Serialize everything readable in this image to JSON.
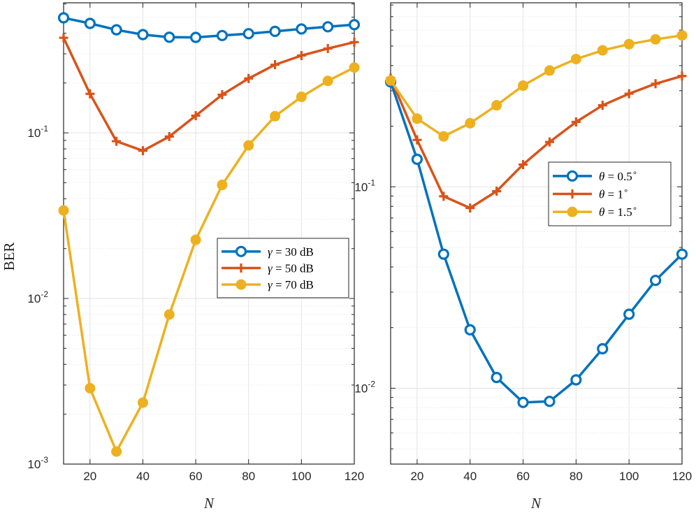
{
  "chart_data": [
    {
      "type": "line",
      "yscale": "log",
      "xlabel": "N",
      "ylabel": "BER",
      "xlim": [
        10,
        120
      ],
      "ylim": [
        0.001,
        0.61
      ],
      "xticks": [
        20,
        40,
        60,
        80,
        100,
        120
      ],
      "ytick_labels": [
        {
          "base": "10",
          "exp": "-1",
          "value": 0.1
        },
        {
          "base": "10",
          "exp": "-2",
          "value": 0.01
        },
        {
          "base": "10",
          "exp": "-3",
          "value": 0.001
        }
      ],
      "grid": true,
      "legend_position": "right-middle",
      "x": [
        10,
        20,
        30,
        40,
        50,
        60,
        70,
        80,
        90,
        100,
        110,
        120
      ],
      "series": [
        {
          "name": "γ = 30 dB",
          "math": "γ",
          "rhs": "= 30 dB",
          "color": "#0072BD",
          "marker": "circle",
          "values": [
            0.495,
            0.458,
            0.419,
            0.392,
            0.378,
            0.377,
            0.387,
            0.397,
            0.41,
            0.424,
            0.437,
            0.45
          ]
        },
        {
          "name": "γ = 50 dB",
          "math": "γ",
          "rhs": "= 50 dB",
          "color": "#D95319",
          "marker": "plus",
          "values": [
            0.375,
            0.172,
            0.089,
            0.078,
            0.095,
            0.127,
            0.17,
            0.213,
            0.258,
            0.293,
            0.323,
            0.353
          ]
        },
        {
          "name": "γ = 70 dB",
          "math": "γ",
          "rhs": "= 70 dB",
          "color": "#EDB120",
          "marker": "dot",
          "values": [
            0.034,
            0.00287,
            0.00119,
            0.00235,
            0.008,
            0.0226,
            0.0485,
            0.084,
            0.126,
            0.165,
            0.206,
            0.248
          ]
        }
      ]
    },
    {
      "type": "line",
      "yscale": "log",
      "xlabel": "N",
      "ylabel": "",
      "xlim": [
        10,
        120
      ],
      "ylim": [
        0.0042,
        0.82
      ],
      "xticks": [
        20,
        40,
        60,
        80,
        100,
        120
      ],
      "ytick_labels": [
        {
          "base": "10",
          "exp": "-1",
          "value": 0.1
        },
        {
          "base": "10",
          "exp": "-2",
          "value": 0.01
        }
      ],
      "grid": true,
      "legend_position": "right-middle",
      "x": [
        10,
        20,
        30,
        40,
        50,
        60,
        70,
        80,
        90,
        100,
        110,
        120
      ],
      "series": [
        {
          "name": "θ = 0.5°",
          "math": "θ",
          "rhs": "= 0.5",
          "sup": "∘",
          "color": "#0072BD",
          "marker": "circle",
          "values": [
            0.332,
            0.137,
            0.0463,
            0.0195,
            0.0113,
            0.0085,
            0.0086,
            0.011,
            0.0157,
            0.0233,
            0.0343,
            0.0463
          ]
        },
        {
          "name": "θ = 1°",
          "math": "θ",
          "rhs": "= 1",
          "sup": "∘",
          "color": "#D95319",
          "marker": "plus",
          "values": [
            0.347,
            0.171,
            0.0897,
            0.0785,
            0.0951,
            0.129,
            0.167,
            0.21,
            0.254,
            0.29,
            0.325,
            0.355
          ]
        },
        {
          "name": "θ = 1.5°",
          "math": "θ",
          "rhs": "= 1.5",
          "sup": "∘",
          "color": "#EDB120",
          "marker": "dot",
          "values": [
            0.337,
            0.218,
            0.178,
            0.207,
            0.254,
            0.318,
            0.378,
            0.431,
            0.476,
            0.511,
            0.54,
            0.565
          ]
        }
      ]
    }
  ]
}
